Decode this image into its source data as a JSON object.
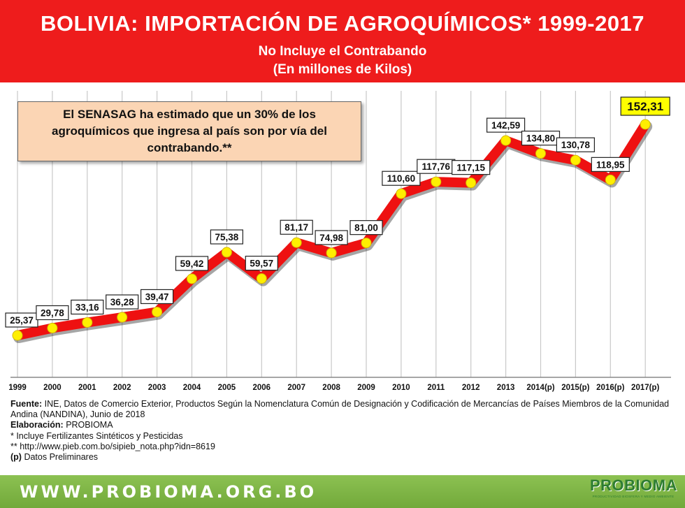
{
  "header": {
    "title": "BOLIVIA: IMPORTACIÓN DE AGROQUÍMICOS* 1999-2017",
    "subtitle1": "No Incluye el Contrabando",
    "subtitle2": "(En  millones de Kilos)"
  },
  "note": "El SENASAG ha estimado que un 30%  de los agroquímicos que ingresa al país son por vía del contrabando.**",
  "chart_data": {
    "type": "line",
    "title": "BOLIVIA: IMPORTACIÓN DE AGROQUÍMICOS* 1999-2017",
    "ylabel": "",
    "xlabel": "",
    "categories": [
      "1999",
      "2000",
      "2001",
      "2002",
      "2003",
      "2004",
      "2005",
      "2006",
      "2007",
      "2008",
      "2009",
      "2010",
      "2011",
      "2012",
      "2013",
      "2014(p)",
      "2015(p)",
      "2016(p)",
      "2017(p)"
    ],
    "series": [
      {
        "values": [
          25.37,
          29.78,
          33.16,
          36.28,
          39.47,
          59.42,
          75.38,
          59.57,
          81.17,
          74.98,
          81.0,
          110.6,
          117.76,
          117.15,
          142.59,
          134.8,
          130.78,
          118.95,
          152.31
        ]
      }
    ],
    "labels": [
      "25,37",
      "29,78",
      "33,16",
      "36,28",
      "39,47",
      "59,42",
      "75,38",
      "59,57",
      "81,17",
      "74,98",
      "81,00",
      "110,60",
      "117,76",
      "117,15",
      "142,59",
      "134,80",
      "130,78",
      "118,95",
      "152,31"
    ],
    "highlight_last": true,
    "colors": {
      "line": "#ee1111",
      "marker": "#ffef00",
      "highlight_box": "#ffff00",
      "grid": "#c8c8c8"
    },
    "grid": "vertical"
  },
  "source": {
    "fuente_label": "Fuente:",
    "fuente_text": " INE, Datos de Comercio Exterior, Productos Según la Nomenclatura Común de Designación y Codificación de Mercancías de Países Miembros de la Comunidad Andina (NANDINA),  Junio de 2018",
    "elab_label": "Elaboración:",
    "elab_text": " PROBIOMA",
    "note1": "* Incluye Fertilizantes Sintéticos y Pesticidas",
    "note2": "** http://www.pieb.com.bo/sipieb_nota.php?idn=8619",
    "note3_label": "(p)",
    "note3_text": " Datos Preliminares"
  },
  "footer": {
    "website": "WWW.PROBIOMA.ORG.BO",
    "logo_text": "PROBIOMA",
    "logo_tagline": "PRODUCTIVIDAD BIOSFERA Y MEDIO AMBIENTE"
  }
}
